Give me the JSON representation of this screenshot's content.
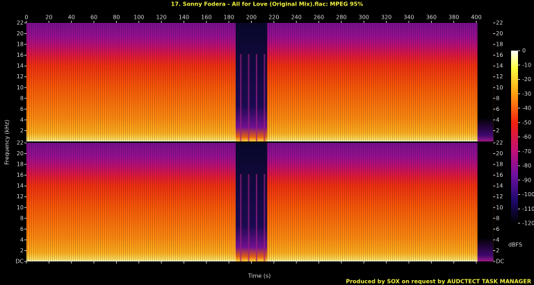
{
  "chart_data": {
    "type": "spectrogram",
    "title": "17. Sonny Fodera - All for Love (Original Mix).flac: MPEG 95%",
    "xlabel": "Time (s)",
    "ylabel": "Frequency (kHz)",
    "channels": 2,
    "xlim": [
      0,
      415
    ],
    "xticks": [
      0,
      20,
      40,
      60,
      80,
      100,
      120,
      140,
      160,
      180,
      200,
      220,
      240,
      260,
      280,
      300,
      320,
      340,
      360,
      380,
      400
    ],
    "ylim": [
      0,
      22
    ],
    "yticks": [
      {
        "value": 0,
        "label": "DC"
      },
      2,
      4,
      6,
      8,
      10,
      12,
      14,
      16,
      18,
      20,
      22
    ],
    "clim": [
      -120,
      0
    ],
    "cticks": [
      0,
      -10,
      -20,
      -30,
      -40,
      -50,
      -60,
      -70,
      -80,
      -90,
      -100,
      -110,
      -120
    ],
    "clabel": "dBFS",
    "footer": "Produced by SOX on request by AUDCTECT TASK MANAGER"
  }
}
